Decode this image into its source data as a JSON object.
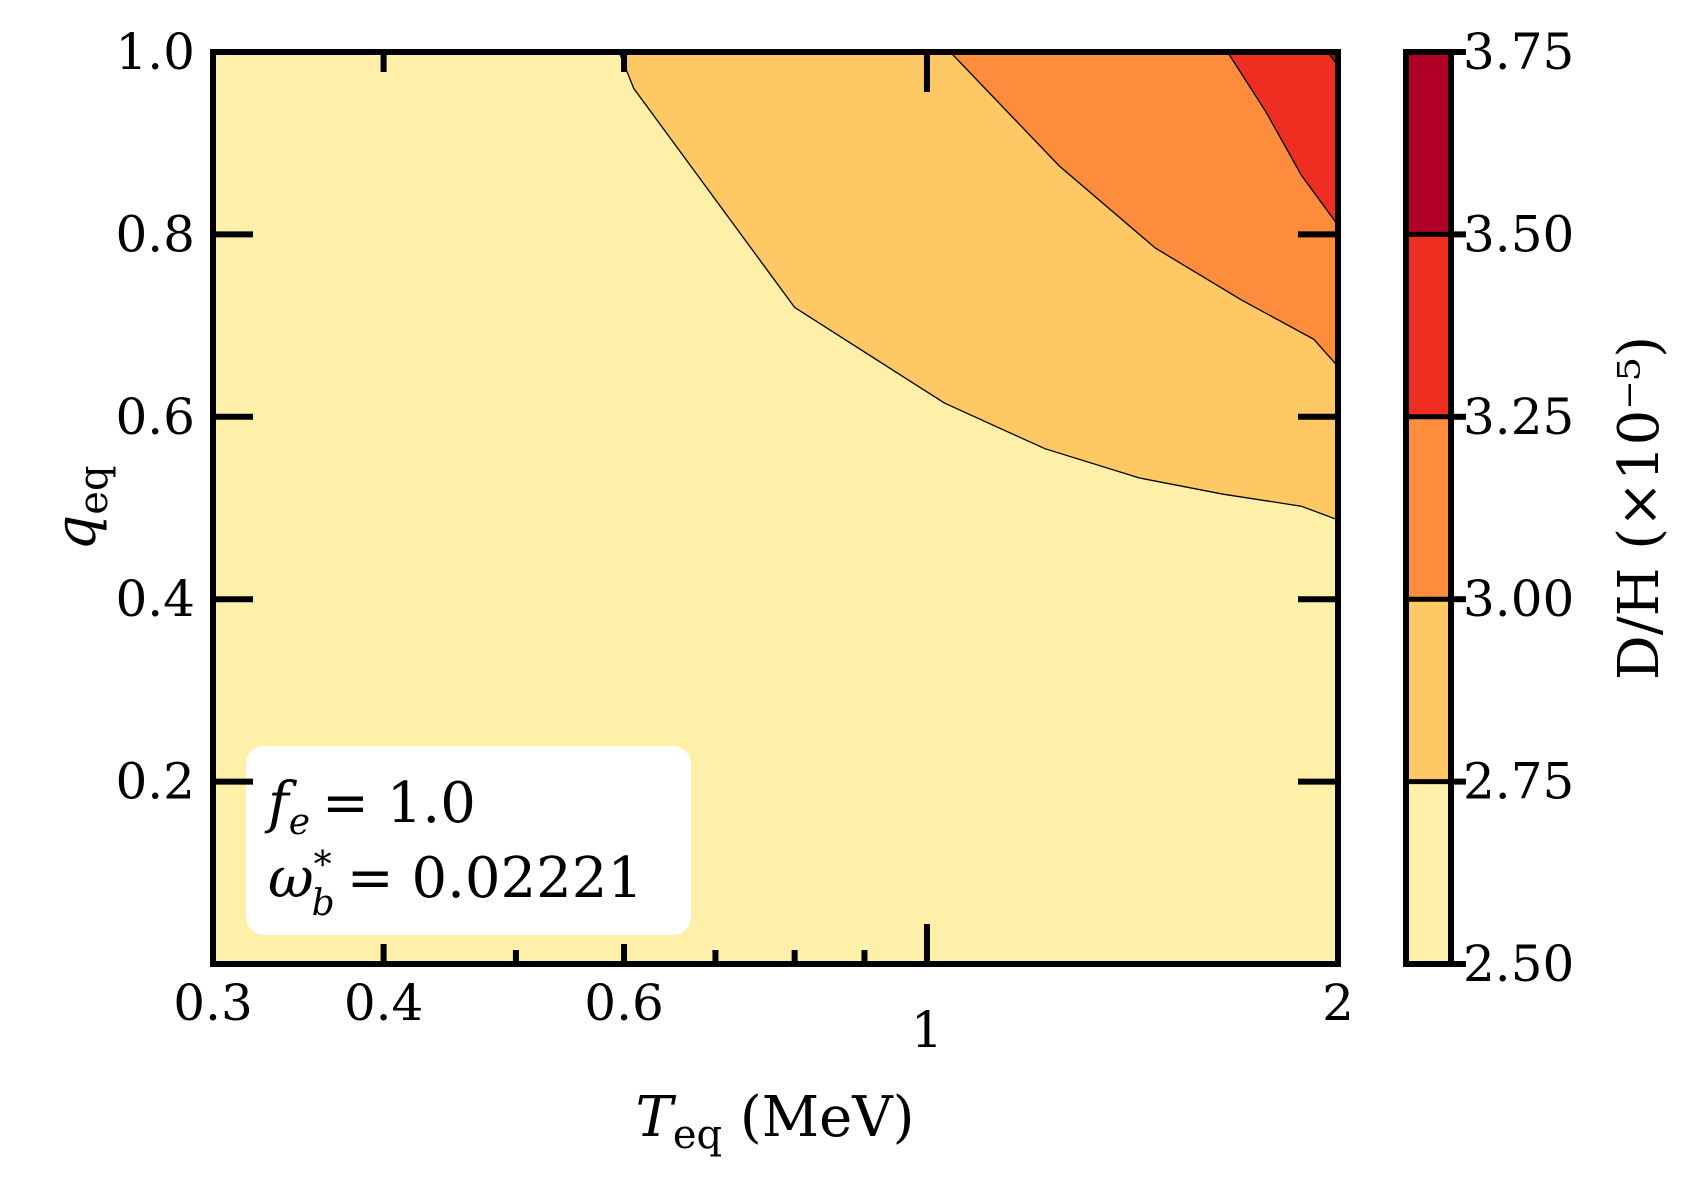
{
  "chart_data": {
    "type": "contour",
    "x_label": "T_eq (MeV)",
    "x_label_parts": {
      "symbol": "T",
      "subscript": "eq",
      "unit": " (MeV)"
    },
    "y_label": "q_eq",
    "y_label_parts": {
      "symbol": "q",
      "subscript": "eq"
    },
    "x_scale": "log",
    "xlim": [
      0.3,
      2.0
    ],
    "ylim": [
      0.0,
      1.0
    ],
    "x_ticks": [
      {
        "value": 0.3,
        "label": "0.3"
      },
      {
        "value": 0.4,
        "label": "0.4"
      },
      {
        "value": 0.6,
        "label": "0.6"
      },
      {
        "value": 1.0,
        "label": "1"
      },
      {
        "value": 2.0,
        "label": "2"
      }
    ],
    "x_minor_ticks": [
      0.5,
      0.7,
      0.8,
      0.9
    ],
    "y_ticks": [
      {
        "value": 0.2,
        "label": "0.2"
      },
      {
        "value": 0.4,
        "label": "0.4"
      },
      {
        "value": 0.6,
        "label": "0.6"
      },
      {
        "value": 0.8,
        "label": "0.8"
      },
      {
        "value": 1.0,
        "label": "1.0"
      }
    ],
    "colorbar": {
      "label": "D/H (×10⁻⁵)",
      "levels": [
        2.5,
        2.75,
        3.0,
        3.25,
        3.5,
        3.75
      ],
      "tick_labels": [
        "2.50",
        "2.75",
        "3.00",
        "3.25",
        "3.50",
        "3.75"
      ],
      "colors": [
        "#fff0a9",
        "#fec864",
        "#fd8c3c",
        "#ef2e22",
        "#b00026"
      ]
    },
    "contours": [
      {
        "level": 2.75,
        "points": [
          [
            0.595,
            1.0
          ],
          [
            0.61,
            0.96
          ],
          [
            0.8,
            0.72
          ],
          [
            1.03,
            0.615
          ],
          [
            1.22,
            0.565
          ],
          [
            1.43,
            0.533
          ],
          [
            1.65,
            0.515
          ],
          [
            1.88,
            0.502
          ],
          [
            2.0,
            0.487
          ]
        ]
      },
      {
        "level": 3.0,
        "points": [
          [
            1.04,
            1.0
          ],
          [
            1.25,
            0.875
          ],
          [
            1.47,
            0.785
          ],
          [
            1.7,
            0.728
          ],
          [
            1.92,
            0.685
          ],
          [
            2.0,
            0.655
          ]
        ]
      },
      {
        "level": 3.25,
        "points": [
          [
            1.66,
            1.0
          ],
          [
            1.77,
            0.935
          ],
          [
            1.88,
            0.865
          ],
          [
            2.0,
            0.81
          ]
        ]
      },
      {
        "level": 3.5,
        "points": [
          [
            1.965,
            1.0
          ],
          [
            2.0,
            0.985
          ]
        ]
      }
    ],
    "annotations": [
      {
        "lhs_symbol": "f",
        "lhs_subscript": "e",
        "rhs": "= 1.0"
      },
      {
        "lhs_symbol": "ω",
        "lhs_subscript": "b",
        "lhs_superscript": "*",
        "rhs": "= 0.02221"
      }
    ]
  }
}
